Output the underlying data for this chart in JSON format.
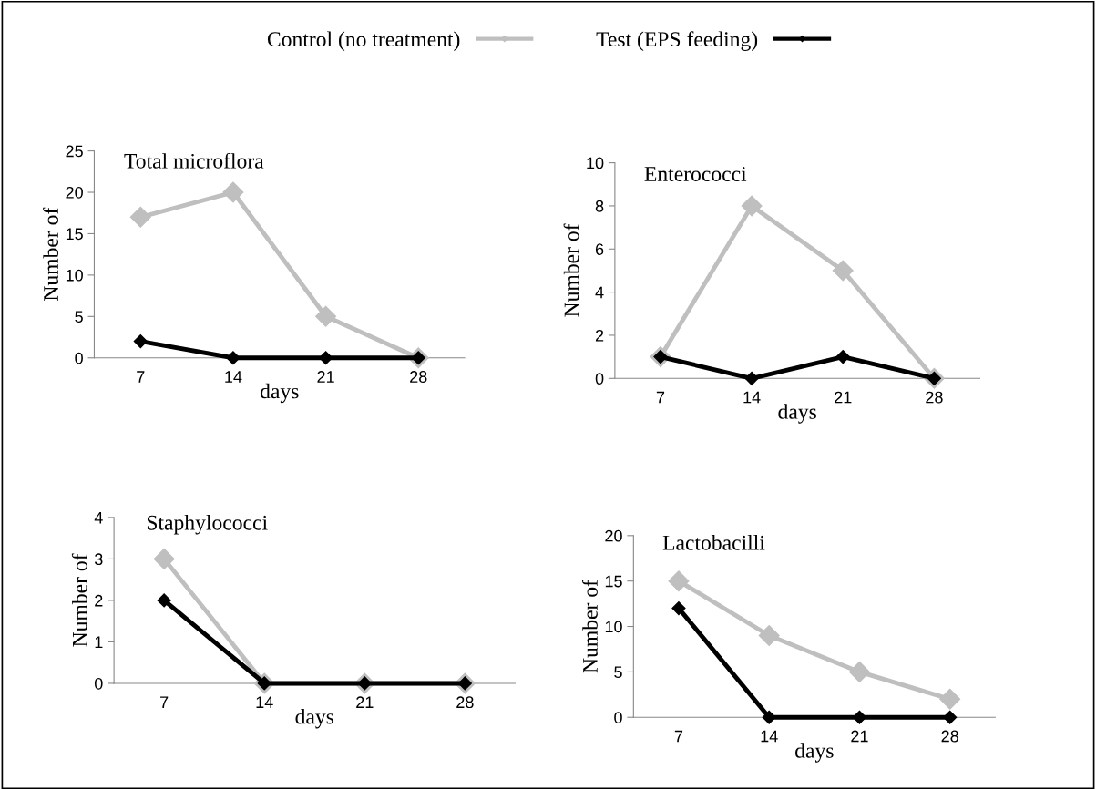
{
  "chart_data": [
    {
      "type": "line",
      "title": "Total microflora",
      "xlabel": "days",
      "ylabel": "Number of",
      "categories": [
        "7",
        "14",
        "21",
        "28"
      ],
      "ylim": [
        0,
        25
      ],
      "yticks": [
        0,
        5,
        10,
        15,
        20,
        25
      ],
      "marker": "diamond",
      "legend": "top",
      "series": [
        {
          "name": "Control (no treatment)",
          "color": "#bfbfbf",
          "values": [
            17,
            20,
            5,
            0
          ]
        },
        {
          "name": "Test (EPS feeding)",
          "color": "#000000",
          "values": [
            2,
            0,
            0,
            0
          ]
        }
      ]
    },
    {
      "type": "line",
      "title": "Enterococci",
      "xlabel": "days",
      "ylabel": "Number of",
      "categories": [
        "7",
        "14",
        "21",
        "28"
      ],
      "ylim": [
        0,
        10
      ],
      "yticks": [
        0,
        2,
        4,
        6,
        8,
        10
      ],
      "marker": "diamond",
      "series": [
        {
          "color": "#bfbfbf",
          "values": [
            1,
            8,
            5,
            0
          ]
        },
        {
          "color": "#000000",
          "values": [
            1,
            0,
            1,
            0
          ]
        }
      ]
    },
    {
      "type": "line",
      "title": "Staphylococci",
      "xlabel": "days",
      "ylabel": "Number of",
      "categories": [
        "7",
        "14",
        "21",
        "28"
      ],
      "ylim": [
        0,
        4
      ],
      "yticks": [
        0,
        1,
        2,
        3,
        4
      ],
      "marker": "diamond",
      "series": [
        {
          "color": "#bfbfbf",
          "values": [
            3,
            0,
            0,
            0
          ]
        },
        {
          "color": "#000000",
          "values": [
            2,
            0,
            0,
            0
          ]
        }
      ]
    },
    {
      "type": "line",
      "title": "Lactobacilli",
      "xlabel": "days",
      "ylabel": "Number of",
      "categories": [
        "7",
        "14",
        "21",
        "28"
      ],
      "ylim": [
        0,
        20
      ],
      "yticks": [
        0,
        5,
        10,
        15,
        20
      ],
      "marker": "diamond",
      "series": [
        {
          "color": "#bfbfbf",
          "values": [
            15,
            9,
            5,
            2
          ]
        },
        {
          "color": "#000000",
          "values": [
            12,
            0,
            0,
            0
          ]
        }
      ]
    }
  ]
}
